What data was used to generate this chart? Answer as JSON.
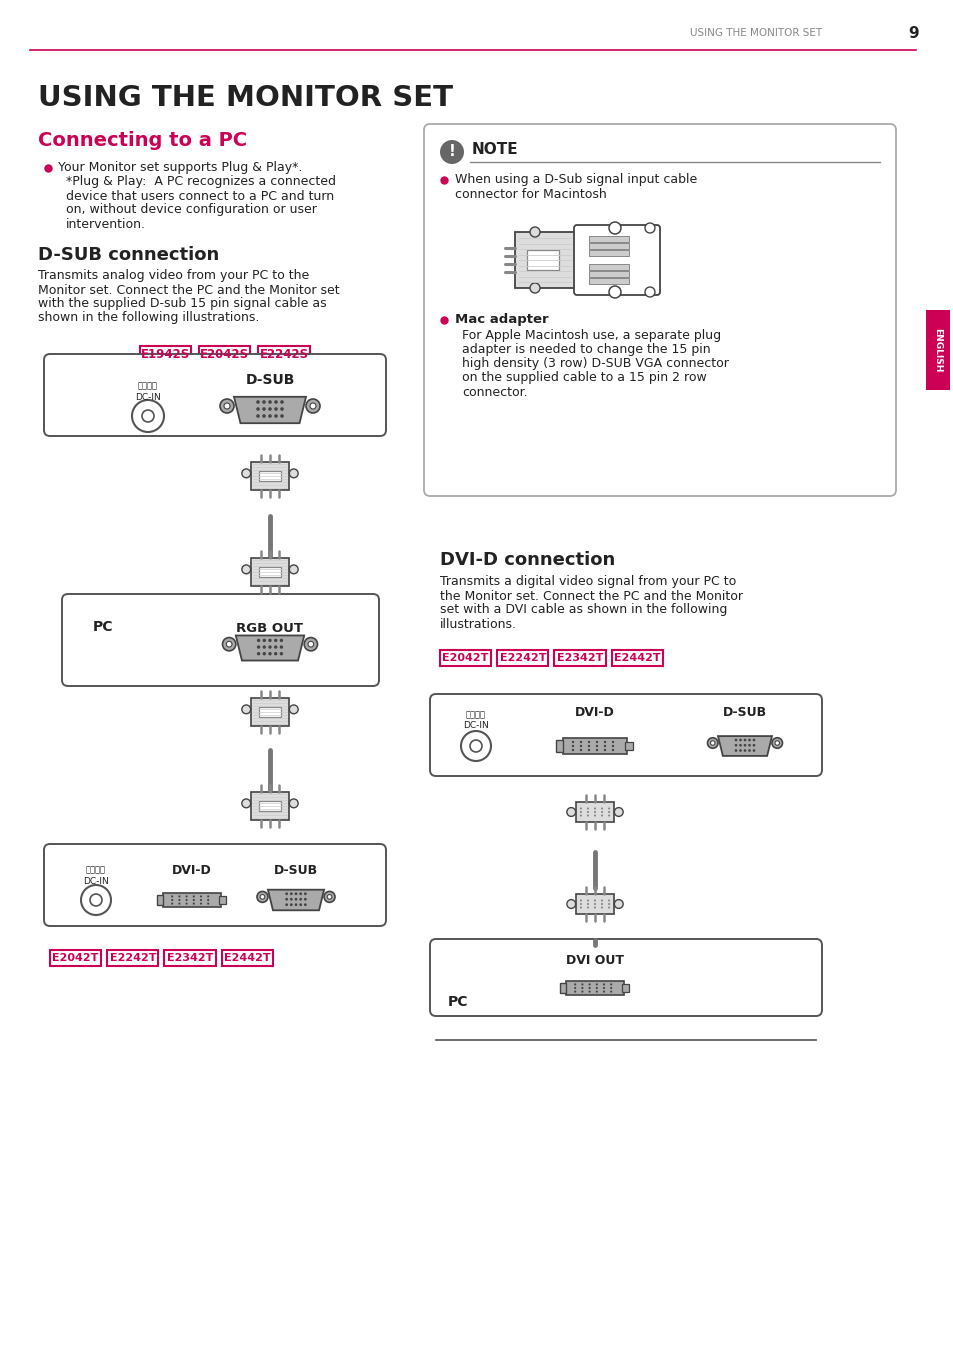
{
  "page_title": "USING THE MONITOR SET",
  "page_number": "9",
  "header_line_color": "#cc0055",
  "header_text_color": "#888888",
  "main_title": "USING THE MONITOR SET",
  "section1_title": "Connecting to a PC",
  "section1_title_color": "#cc0055",
  "bullet_color": "#cc0055",
  "section2_title": "D-SUB connection",
  "section2_body_lines": [
    "Transmits analog video from your PC to the",
    "Monitor set. Connect the PC and the Monitor set",
    "with the supplied D-sub 15 pin signal cable as",
    "shown in the following illustrations."
  ],
  "dsub_models": [
    "E1942S",
    "E2042S",
    "E2242S"
  ],
  "model_box_color": "#cc0055",
  "note_title": "NOTE",
  "note_icon_color": "#555555",
  "note_bullet1_lines": [
    "When using a D-Sub signal input cable",
    "connector for Macintosh"
  ],
  "mac_adapter_label": "Mac adapter",
  "mac_adapter_body_lines": [
    "For Apple Macintosh use, a separate plug",
    "adapter is needed to change the 15 pin",
    "high density (3 row) D-SUB VGA connector",
    "on the supplied cable to a 15 pin 2 row",
    "connector."
  ],
  "section3_title": "DVI-D connection",
  "section3_body_lines": [
    "Transmits a digital video signal from your PC to",
    "the Monitor set. Connect the PC and the Monitor",
    "set with a DVI cable as shown in the following",
    "illustrations."
  ],
  "dvid_models": [
    "E2042T",
    "E2242T",
    "E2342T",
    "E2442T"
  ],
  "sidebar_color": "#cc0055",
  "sidebar_text": "ENGLISH",
  "bg_color": "#ffffff",
  "text_color": "#222222",
  "connector_dark": "#444444",
  "connector_mid": "#aaaaaa",
  "connector_light": "#dddddd",
  "connector_line": "#777777"
}
